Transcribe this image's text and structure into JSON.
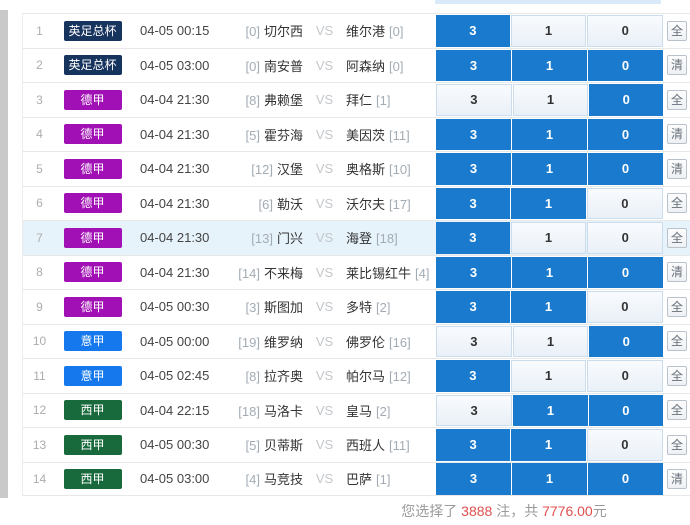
{
  "colors": {
    "selected_cell": "#1a7bce",
    "unselected_cell_border": "#cbdcec",
    "row_highlight": "#e7f3fb",
    "summary_number_red": "#e04f4f",
    "league_colors": {
      "英足总杯": "#17345e",
      "德甲": "#a110b4",
      "意甲": "#1578ec",
      "西甲": "#186a3c"
    }
  },
  "table": {
    "vs_label": "VS",
    "option_labels": [
      "3",
      "1",
      "0"
    ],
    "action_labels": {
      "select_all": "全",
      "clear": "清"
    },
    "rows": [
      {
        "num": "1",
        "league": "英足总杯",
        "time": "04-05 00:15",
        "home_rank": "[0]",
        "home": "切尔西",
        "away": "维尔港",
        "away_rank": "[0]",
        "picks": [
          true,
          false,
          false
        ],
        "action": "全",
        "highlighted": false
      },
      {
        "num": "2",
        "league": "英足总杯",
        "time": "04-05 03:00",
        "home_rank": "[0]",
        "home": "南安普",
        "away": "阿森纳",
        "away_rank": "[0]",
        "picks": [
          true,
          true,
          true
        ],
        "action": "清",
        "highlighted": false
      },
      {
        "num": "3",
        "league": "德甲",
        "time": "04-04 21:30",
        "home_rank": "[8]",
        "home": "弗赖堡",
        "away": "拜仁",
        "away_rank": "[1]",
        "picks": [
          false,
          false,
          true
        ],
        "action": "全",
        "highlighted": false
      },
      {
        "num": "4",
        "league": "德甲",
        "time": "04-04 21:30",
        "home_rank": "[5]",
        "home": "霍芬海",
        "away": "美因茨",
        "away_rank": "[11]",
        "picks": [
          true,
          true,
          true
        ],
        "action": "清",
        "highlighted": false
      },
      {
        "num": "5",
        "league": "德甲",
        "time": "04-04 21:30",
        "home_rank": "[12]",
        "home": "汉堡",
        "away": "奥格斯",
        "away_rank": "[10]",
        "picks": [
          true,
          true,
          true
        ],
        "action": "清",
        "highlighted": false
      },
      {
        "num": "6",
        "league": "德甲",
        "time": "04-04 21:30",
        "home_rank": "[6]",
        "home": "勒沃",
        "away": "沃尔夫",
        "away_rank": "[17]",
        "picks": [
          true,
          true,
          false
        ],
        "action": "全",
        "highlighted": false
      },
      {
        "num": "7",
        "league": "德甲",
        "time": "04-04 21:30",
        "home_rank": "[13]",
        "home": "门兴",
        "away": "海登",
        "away_rank": "[18]",
        "picks": [
          true,
          false,
          false
        ],
        "action": "全",
        "highlighted": true
      },
      {
        "num": "8",
        "league": "德甲",
        "time": "04-04 21:30",
        "home_rank": "[14]",
        "home": "不来梅",
        "away": "莱比锡红牛",
        "away_rank": "[4]",
        "picks": [
          true,
          true,
          true
        ],
        "action": "清",
        "highlighted": false
      },
      {
        "num": "9",
        "league": "德甲",
        "time": "04-05 00:30",
        "home_rank": "[3]",
        "home": "斯图加",
        "away": "多特",
        "away_rank": "[2]",
        "picks": [
          true,
          true,
          false
        ],
        "action": "全",
        "highlighted": false
      },
      {
        "num": "10",
        "league": "意甲",
        "time": "04-05 00:00",
        "home_rank": "[19]",
        "home": "维罗纳",
        "away": "佛罗伦",
        "away_rank": "[16]",
        "picks": [
          false,
          false,
          true
        ],
        "action": "全",
        "highlighted": false
      },
      {
        "num": "11",
        "league": "意甲",
        "time": "04-05 02:45",
        "home_rank": "[8]",
        "home": "拉齐奥",
        "away": "帕尔马",
        "away_rank": "[12]",
        "picks": [
          true,
          false,
          false
        ],
        "action": "全",
        "highlighted": false
      },
      {
        "num": "12",
        "league": "西甲",
        "time": "04-04 22:15",
        "home_rank": "[18]",
        "home": "马洛卡",
        "away": "皇马",
        "away_rank": "[2]",
        "picks": [
          false,
          true,
          true
        ],
        "action": "全",
        "highlighted": false
      },
      {
        "num": "13",
        "league": "西甲",
        "time": "04-05 00:30",
        "home_rank": "[5]",
        "home": "贝蒂斯",
        "away": "西班人",
        "away_rank": "[11]",
        "picks": [
          true,
          true,
          false
        ],
        "action": "全",
        "highlighted": false
      },
      {
        "num": "14",
        "league": "西甲",
        "time": "04-05 03:00",
        "home_rank": "[4]",
        "home": "马竞技",
        "away": "巴萨",
        "away_rank": "[1]",
        "picks": [
          true,
          true,
          true
        ],
        "action": "清",
        "highlighted": false
      }
    ]
  },
  "footer": {
    "prefix": "您选择了",
    "count": "3888",
    "unit": "注，共",
    "amount": "7776.00",
    "suffix": "元"
  }
}
